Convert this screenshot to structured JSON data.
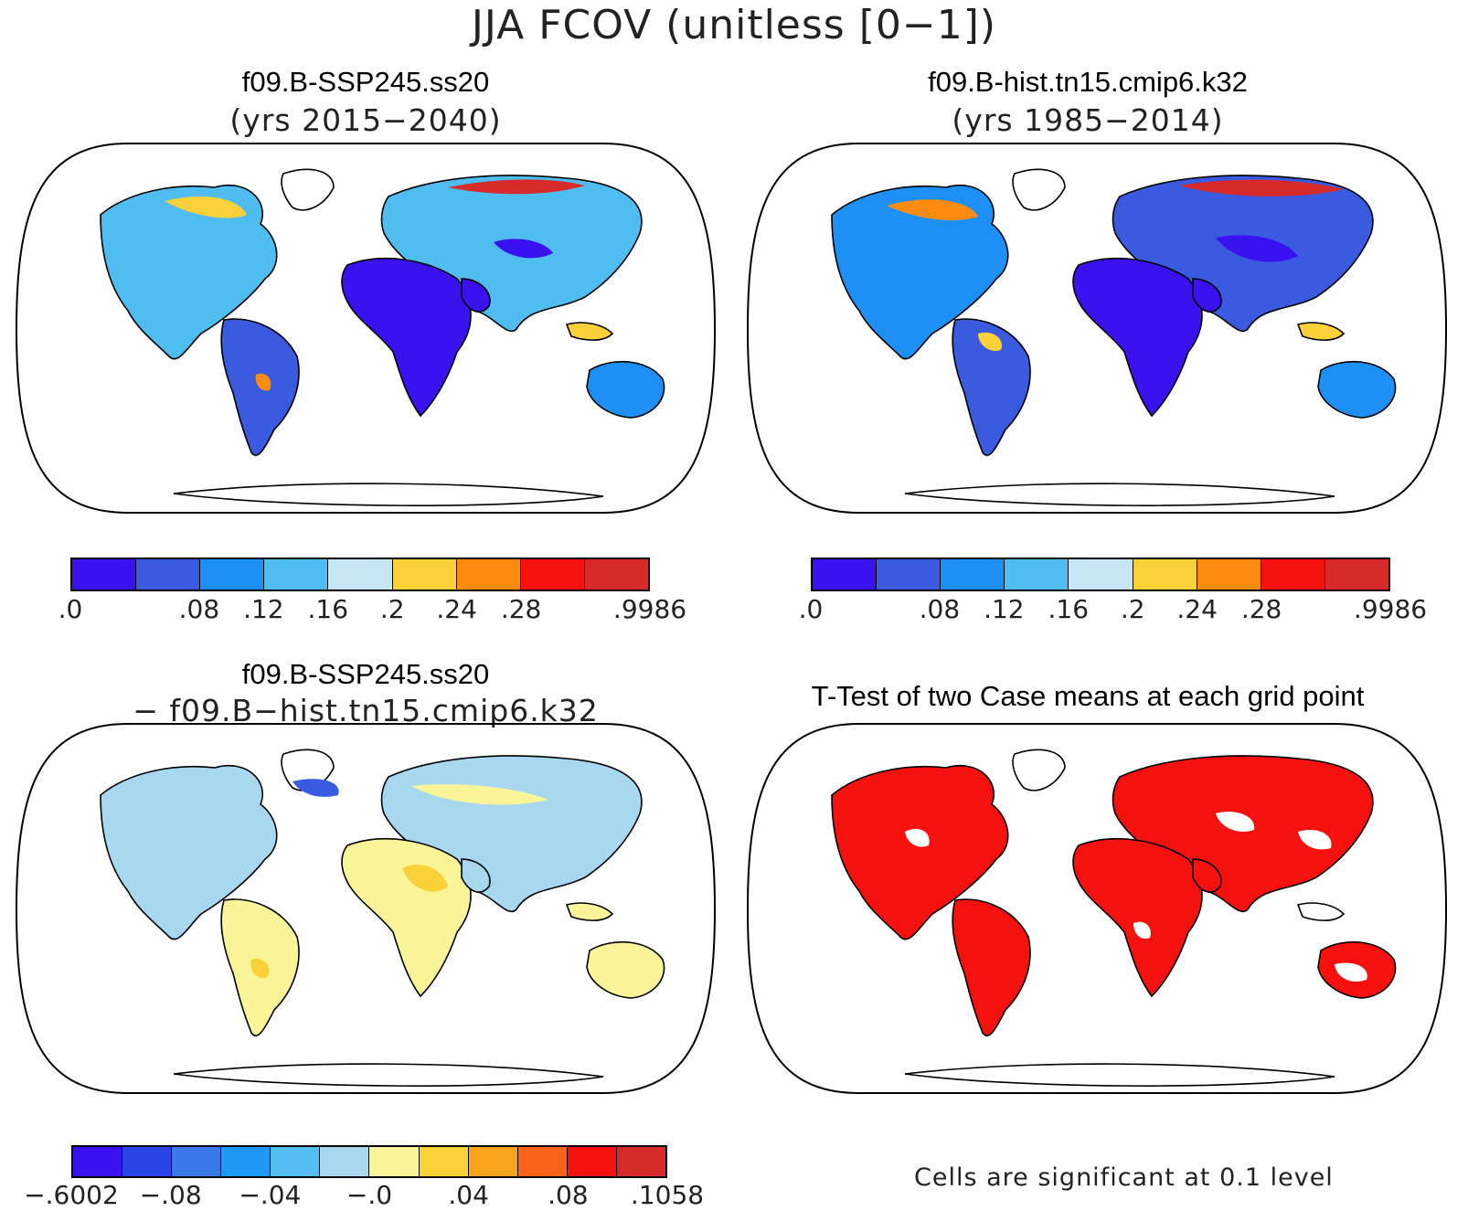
{
  "title": "JJA FCOV (unitless [0−1])",
  "panels": [
    {
      "title": "f09.B-SSP245.ss20",
      "subtitle": "(yrs 2015−2040)",
      "scheme": "abs"
    },
    {
      "title": "f09.B-hist.tn15.cmip6.k32",
      "subtitle": "(yrs 1985−2014)",
      "scheme": "abs"
    },
    {
      "title": "f09.B-SSP245.ss20",
      "subtitle": "− f09.B−hist.tn15.cmip6.k32",
      "scheme": "diff"
    },
    {
      "title": "T-Test of two Case means at each grid point",
      "subtitle": "",
      "scheme": "sig"
    }
  ],
  "colorbars": {
    "absolute": {
      "colors": [
        "#3a12f0",
        "#3a5be0",
        "#1e90f5",
        "#4fbdf0",
        "#c6e5f5",
        "#fbd13a",
        "#fb8c0f",
        "#f5120e",
        "#d72a2a"
      ],
      "ticks": [
        ".0",
        ".08",
        ".12",
        ".16",
        ".2",
        ".24",
        ".28",
        ".9986"
      ],
      "tick_boundaries": [
        0,
        2,
        3,
        4,
        5,
        6,
        7,
        9
      ]
    },
    "difference": {
      "colors": [
        "#3a12f0",
        "#2a45e8",
        "#3a7ae8",
        "#1e9af5",
        "#55bdf0",
        "#a8d8ef",
        "#fbf59a",
        "#fbd13a",
        "#fba51e",
        "#f9641a",
        "#f5120e",
        "#d72a2a"
      ],
      "ticks": [
        "−.6002",
        "−.08",
        "−.04",
        "−.0",
        ".04",
        ".08",
        ".1058"
      ],
      "tick_boundaries": [
        0,
        2,
        4,
        6,
        8,
        10,
        12
      ]
    }
  },
  "ttest_note": "Cells are significant at 0.1 level"
}
